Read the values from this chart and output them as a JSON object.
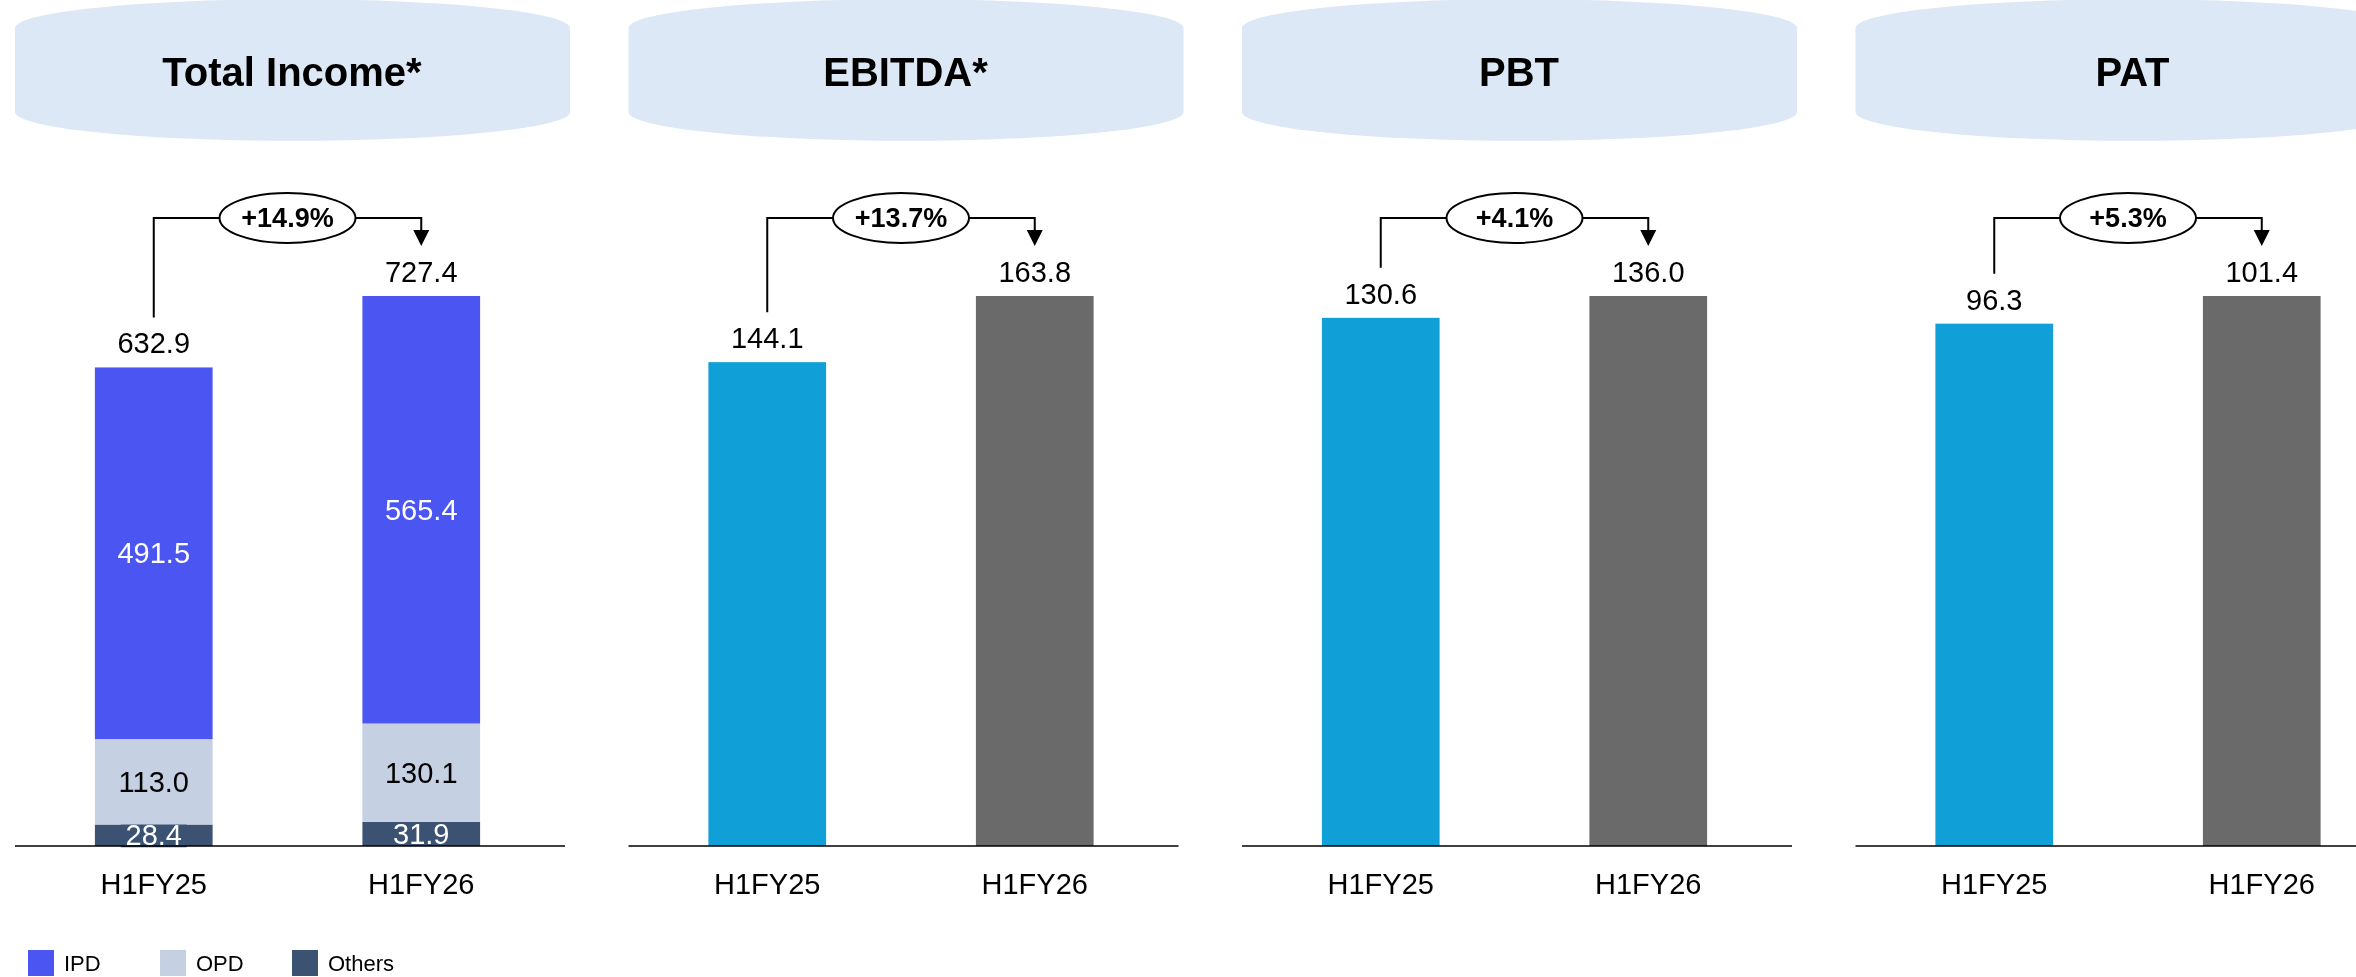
{
  "chart_data": [
    {
      "type": "bar",
      "title": "Total Income*",
      "categories": [
        "H1FY25",
        "H1FY26"
      ],
      "stacked": true,
      "legend": "bottom left",
      "totals": [
        "632.9",
        "727.4"
      ],
      "annotations": [
        "+14.9%"
      ],
      "series": [
        {
          "name": "Others",
          "color": "#3b5272",
          "values": [
            28.4,
            31.9
          ],
          "value_labels": [
            "28.4",
            "31.9"
          ]
        },
        {
          "name": "OPD",
          "color": "#c5d0e2",
          "values": [
            113.0,
            130.1
          ],
          "value_labels": [
            "113.0",
            "130.1"
          ]
        },
        {
          "name": "IPD",
          "color": "#4a55f2",
          "values": [
            491.5,
            565.4
          ],
          "value_labels": [
            "491.5",
            "565.4"
          ]
        }
      ]
    },
    {
      "type": "bar",
      "title": "EBITDA*",
      "categories": [
        "H1FY25",
        "H1FY26"
      ],
      "values": [
        144.1,
        163.8
      ],
      "value_labels": [
        "144.1",
        "163.8"
      ],
      "colors": [
        "#119fd7",
        "#6a6a6a"
      ],
      "annotations": [
        "+13.7%"
      ]
    },
    {
      "type": "bar",
      "title": "PBT",
      "categories": [
        "H1FY25",
        "H1FY26"
      ],
      "values": [
        130.6,
        136.0
      ],
      "value_labels": [
        "130.6",
        "136.0"
      ],
      "colors": [
        "#119fd7",
        "#6a6a6a"
      ],
      "annotations": [
        "+4.1%"
      ]
    },
    {
      "type": "bar",
      "title": "PAT",
      "categories": [
        "H1FY25",
        "H1FY26"
      ],
      "values": [
        96.3,
        101.4
      ],
      "value_labels": [
        "96.3",
        "101.4"
      ],
      "colors": [
        "#119fd7",
        "#6a6a6a"
      ],
      "annotations": [
        "+5.3%"
      ]
    }
  ]
}
